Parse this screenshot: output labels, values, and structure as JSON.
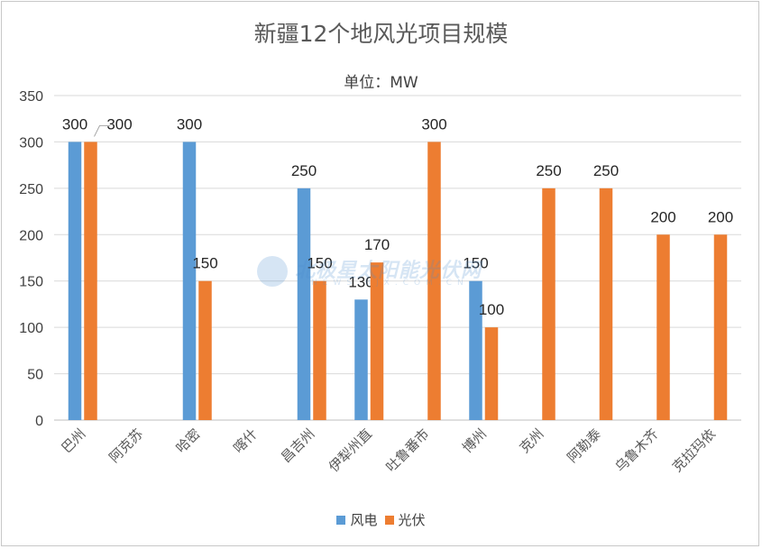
{
  "chart_data": {
    "type": "bar",
    "title": "新疆12个地风光项目规模",
    "subtitle": "单位：MW",
    "categories": [
      "巴州",
      "阿克苏",
      "哈密",
      "喀什",
      "昌吉州",
      "伊犁州直",
      "吐鲁番市",
      "博州",
      "克州",
      "阿勒泰",
      "乌鲁木齐",
      "克拉玛依"
    ],
    "series": [
      {
        "name": "风电",
        "color": "#5b9bd5",
        "values": [
          300,
          null,
          300,
          null,
          250,
          130,
          null,
          150,
          null,
          null,
          null,
          null
        ]
      },
      {
        "name": "光伏",
        "color": "#ed7d31",
        "values": [
          300,
          null,
          150,
          null,
          150,
          170,
          300,
          100,
          250,
          250,
          200,
          200
        ]
      }
    ],
    "ylim": [
      0,
      350
    ],
    "yticks": [
      0,
      50,
      100,
      150,
      200,
      250,
      300,
      350
    ],
    "grid": true,
    "legend": "bottom"
  },
  "watermark": {
    "text": "北极星太阳能光伏网",
    "subtext": "NEWS.BJX.COM.CN"
  }
}
